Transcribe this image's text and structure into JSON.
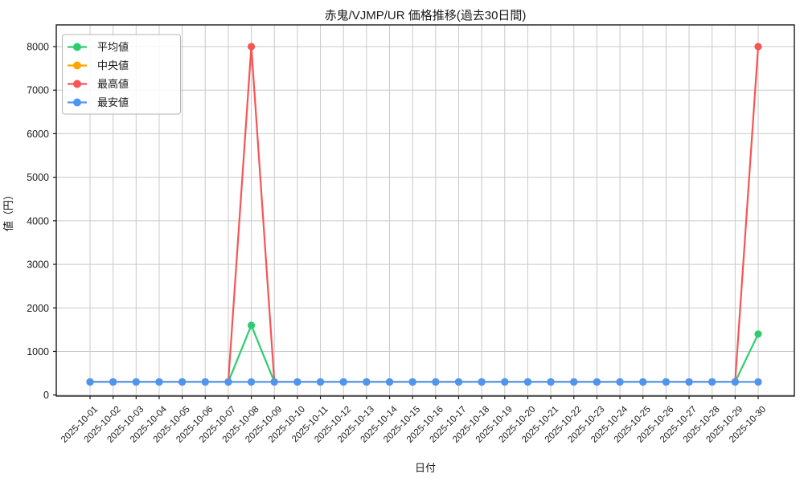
{
  "chart_data": {
    "type": "line",
    "title": "赤鬼/VJMP/UR 価格推移(過去30日間)",
    "xlabel": "日付",
    "ylabel": "値（円）",
    "ylim": [
      -90,
      8500
    ],
    "y_ticks": [
      0,
      1000,
      2000,
      3000,
      4000,
      5000,
      6000,
      7000,
      8000
    ],
    "grid": true,
    "legend_position": "upper-left",
    "categories": [
      "2025-10-01",
      "2025-10-02",
      "2025-10-03",
      "2025-10-04",
      "2025-10-05",
      "2025-10-06",
      "2025-10-07",
      "2025-10-08",
      "2025-10-09",
      "2025-10-10",
      "2025-10-11",
      "2025-10-12",
      "2025-10-13",
      "2025-10-14",
      "2025-10-15",
      "2025-10-16",
      "2025-10-17",
      "2025-10-18",
      "2025-10-19",
      "2025-10-20",
      "2025-10-21",
      "2025-10-22",
      "2025-10-23",
      "2025-10-24",
      "2025-10-25",
      "2025-10-26",
      "2025-10-27",
      "2025-10-28",
      "2025-10-29",
      "2025-10-30"
    ],
    "series": [
      {
        "name": "平均値",
        "key": "avg",
        "color": "#2ecc71",
        "values": [
          300,
          300,
          300,
          300,
          300,
          300,
          300,
          1600,
          300,
          300,
          300,
          300,
          300,
          300,
          300,
          300,
          300,
          300,
          300,
          300,
          300,
          300,
          300,
          300,
          300,
          300,
          300,
          300,
          300,
          1400
        ]
      },
      {
        "name": "中央値",
        "key": "median",
        "color": "#ffa502",
        "values": [
          300,
          300,
          300,
          300,
          300,
          300,
          300,
          300,
          300,
          300,
          300,
          300,
          300,
          300,
          300,
          300,
          300,
          300,
          300,
          300,
          300,
          300,
          300,
          300,
          300,
          300,
          300,
          300,
          300,
          300
        ]
      },
      {
        "name": "最高値",
        "key": "max",
        "color": "#f75454",
        "values": [
          300,
          300,
          300,
          300,
          300,
          300,
          300,
          8000,
          300,
          300,
          300,
          300,
          300,
          300,
          300,
          300,
          300,
          300,
          300,
          300,
          300,
          300,
          300,
          300,
          300,
          300,
          300,
          300,
          300,
          8000
        ]
      },
      {
        "name": "最安値",
        "key": "min",
        "color": "#4d96f0",
        "values": [
          300,
          300,
          300,
          300,
          300,
          300,
          300,
          300,
          300,
          300,
          300,
          300,
          300,
          300,
          300,
          300,
          300,
          300,
          300,
          300,
          300,
          300,
          300,
          300,
          300,
          300,
          300,
          300,
          300,
          300
        ]
      }
    ],
    "colors": {
      "grid": "#c9c9c9",
      "axis": "#1a1a1a",
      "text": "#1a1a1a",
      "legend_border": "#b5b5b5",
      "background": "#ffffff"
    }
  }
}
